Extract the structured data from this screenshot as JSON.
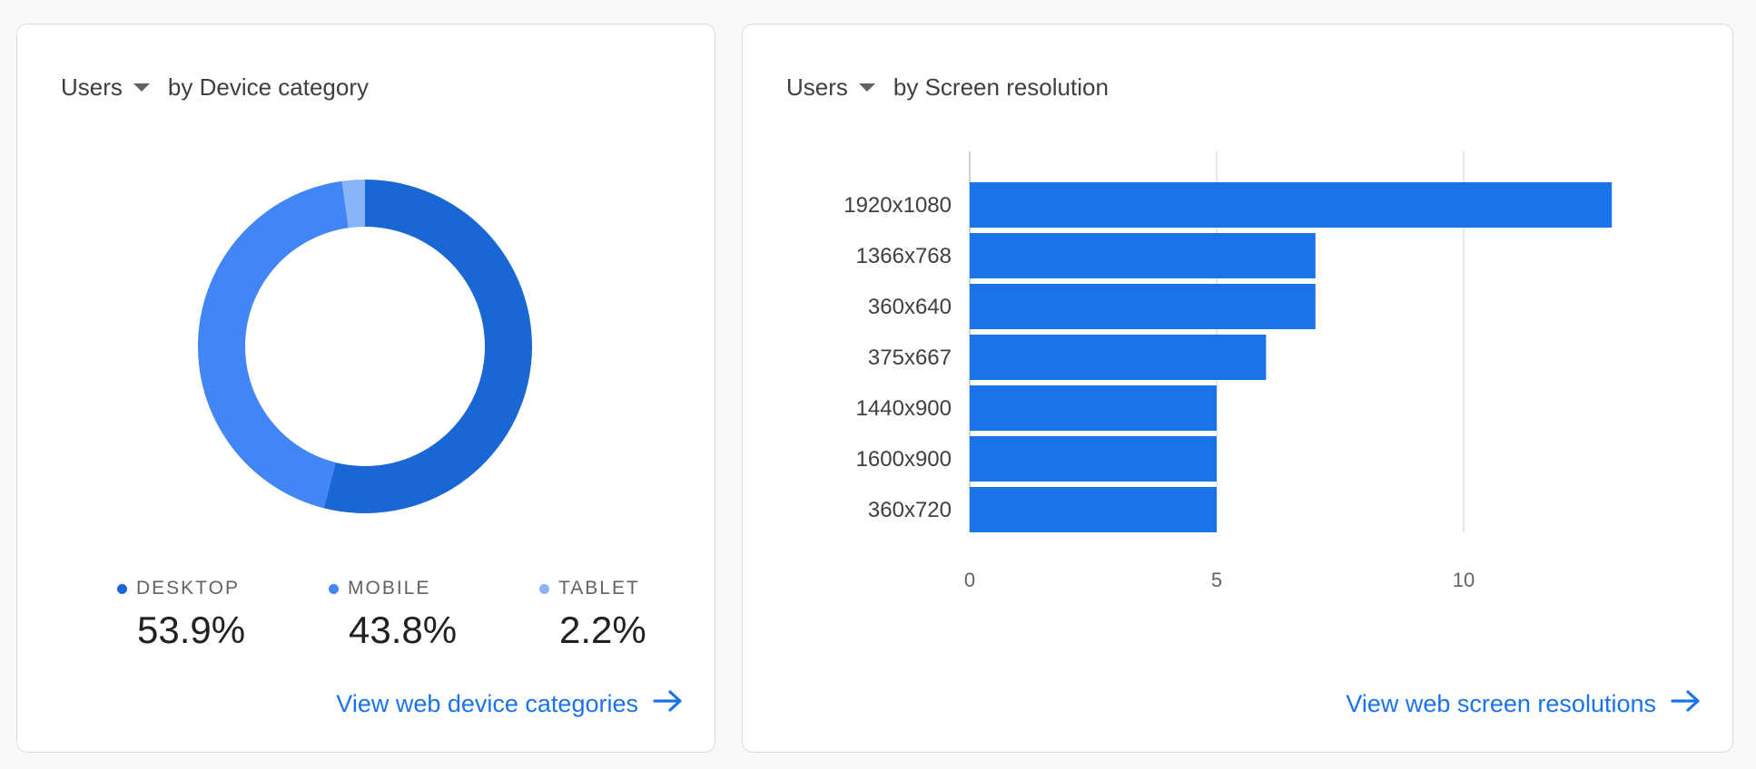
{
  "device_card": {
    "metric_label": "Users",
    "dimension_label": "by Device category",
    "link_label": "View web device categories",
    "legend": [
      {
        "name": "DESKTOP",
        "value": "53.9%",
        "color": "#1967d2"
      },
      {
        "name": "MOBILE",
        "value": "43.8%",
        "color": "#4285f4"
      },
      {
        "name": "TABLET",
        "value": "2.2%",
        "color": "#8ab4f8"
      }
    ]
  },
  "resolution_card": {
    "metric_label": "Users",
    "dimension_label": "by Screen resolution",
    "link_label": "View web screen resolutions"
  },
  "chart_data": [
    {
      "type": "pie",
      "donut": true,
      "categories": [
        "DESKTOP",
        "MOBILE",
        "TABLET"
      ],
      "values": [
        53.9,
        43.8,
        2.2
      ],
      "colors": [
        "#1967d2",
        "#4285f4",
        "#8ab4f8"
      ],
      "title": "",
      "legend_position": "bottom"
    },
    {
      "type": "bar",
      "orientation": "horizontal",
      "categories": [
        "1920x1080",
        "1366x768",
        "360x640",
        "375x667",
        "1440x900",
        "1600x900",
        "360x720"
      ],
      "values": [
        13,
        7,
        7,
        6,
        5,
        5,
        5
      ],
      "xlim": [
        0,
        13.5
      ],
      "xticks": [
        "0",
        "5",
        "10"
      ],
      "xtick_values": [
        0,
        5,
        10
      ],
      "bar_color": "#1a73e8",
      "grid": true,
      "title": "",
      "xlabel": "",
      "ylabel": ""
    }
  ]
}
